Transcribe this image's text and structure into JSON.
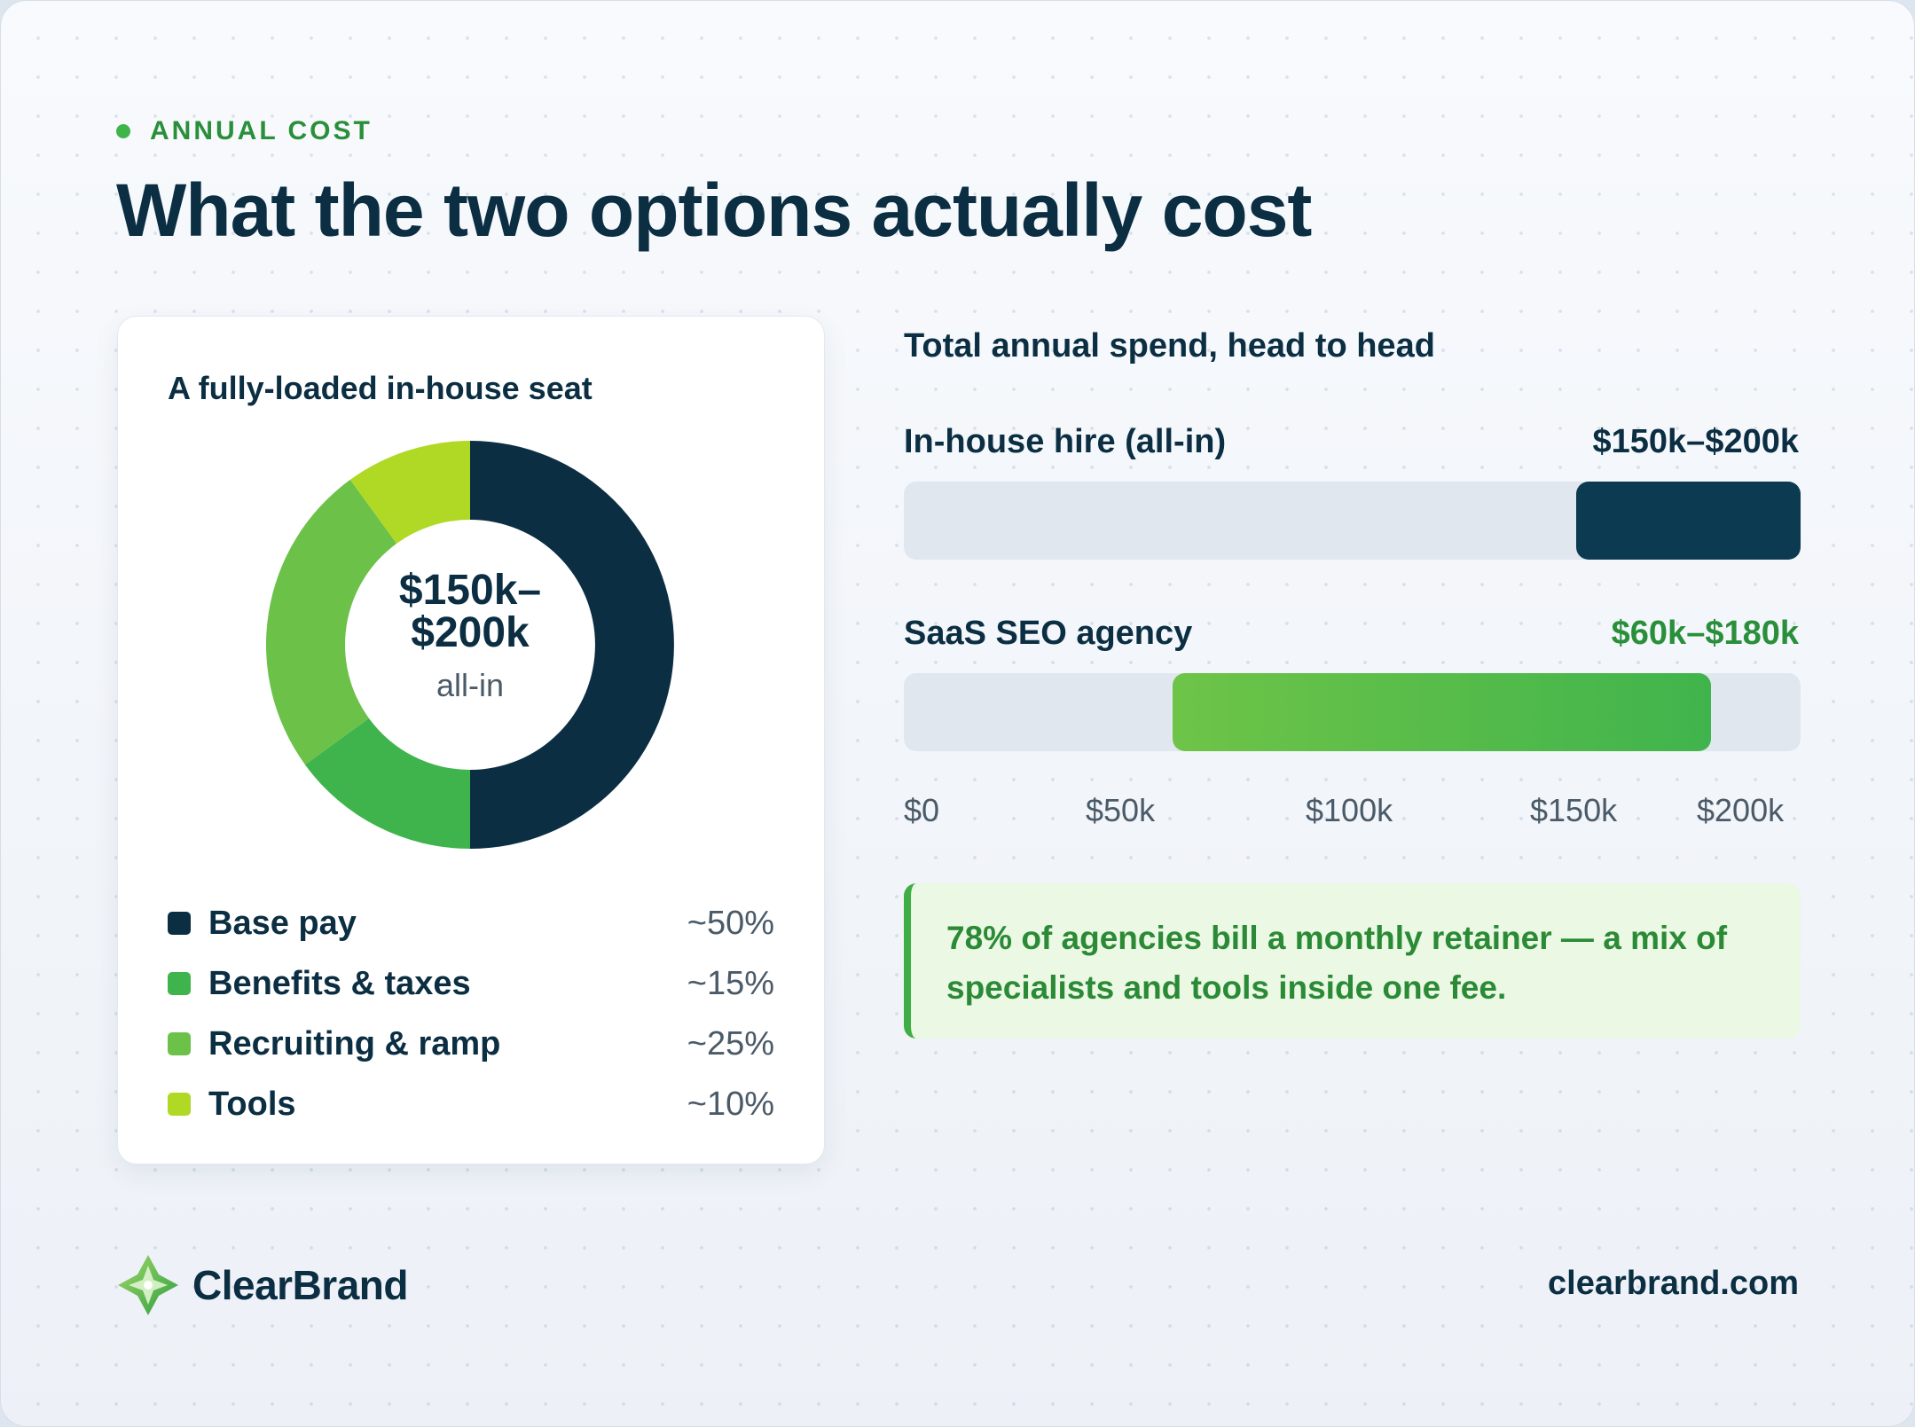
{
  "eyebrow": "ANNUAL COST",
  "title": "What the two options actually cost",
  "donut_card": {
    "title": "A fully-loaded in-house seat",
    "center_line1": "$150k–",
    "center_line2": "$200k",
    "center_line3": "all-in"
  },
  "bar_section": {
    "title": "Total annual spend, head to head"
  },
  "note": {
    "text": "78% of agencies bill a monthly retainer — a mix of specialists and tools inside one fee.",
    "accent": "#3fae45"
  },
  "footer": {
    "brand": "ClearBrand",
    "site": "clearbrand.com"
  },
  "colors": {
    "navy": "#0b2e42",
    "green": "#40b44c",
    "light_green": "#6cc149",
    "lime": "#afd925"
  },
  "chart_data": [
    {
      "type": "pie",
      "title": "A fully-loaded in-house seat",
      "slices": [
        {
          "name": "Base pay",
          "value": 50,
          "label": "~50%",
          "color": "#0b2e42"
        },
        {
          "name": "Benefits & taxes",
          "value": 15,
          "label": "~15%",
          "color": "#40b44c"
        },
        {
          "name": "Recruiting & ramp",
          "value": 25,
          "label": "~25%",
          "color": "#6cc149"
        },
        {
          "name": "Tools",
          "value": 10,
          "label": "~10%",
          "color": "#afd925"
        }
      ]
    },
    {
      "type": "bar",
      "orientation": "horizontal",
      "title": "Total annual spend, head to head",
      "xlim": [
        0,
        200
      ],
      "ticks": [
        {
          "value": 0,
          "label": "$0"
        },
        {
          "value": 50,
          "label": "$50k"
        },
        {
          "value": 100,
          "label": "$100k"
        },
        {
          "value": 150,
          "label": "$150k"
        },
        {
          "value": 200,
          "label": "$200k"
        }
      ],
      "bars": [
        {
          "name": "In-house hire (all-in)",
          "min": 150,
          "max": 200,
          "label": "$150k–$200k",
          "color": "#0c3a51"
        },
        {
          "name": "SaaS SEO agency",
          "min": 60,
          "max": 180,
          "label": "$60k–$180k",
          "color": "#40b44c"
        }
      ]
    }
  ]
}
